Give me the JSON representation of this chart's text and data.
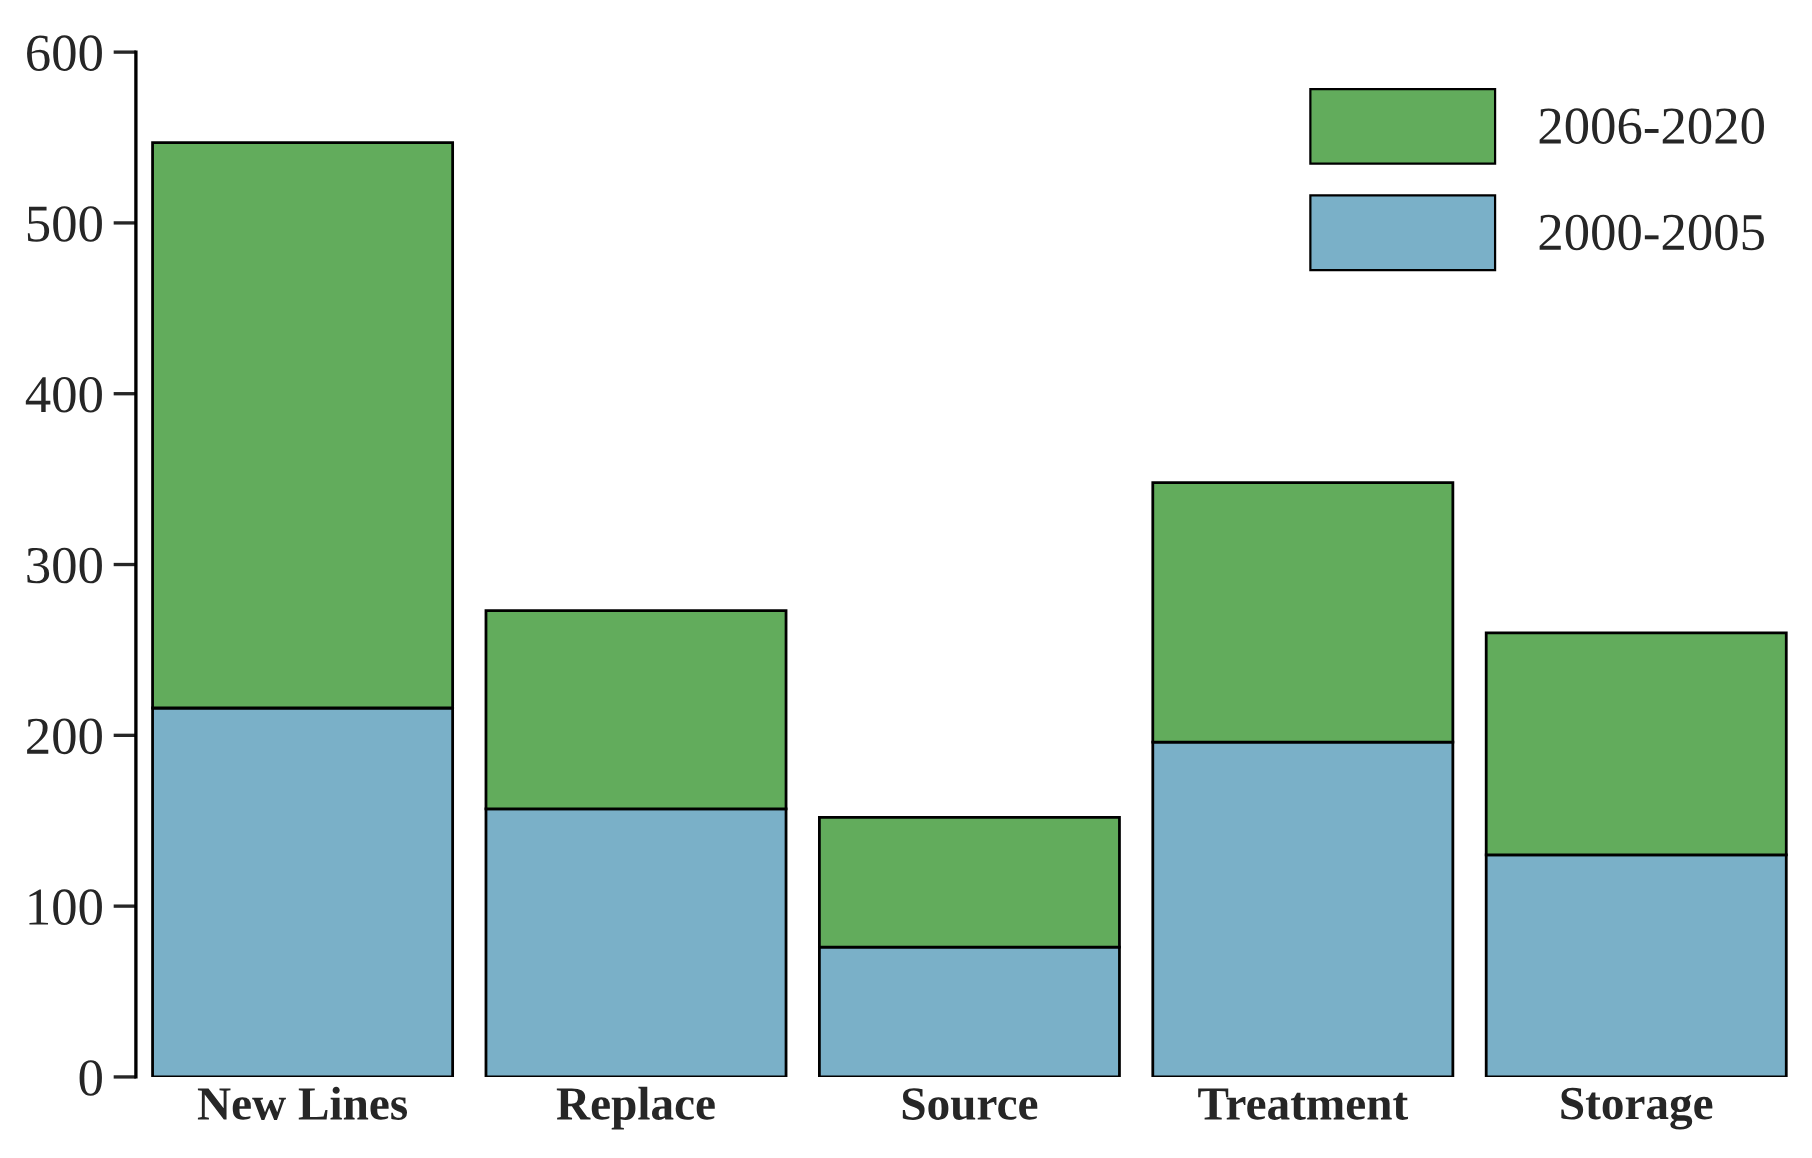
{
  "chart_data": {
    "type": "bar",
    "stacked": true,
    "categories": [
      "New Lines",
      "Replace",
      "Source",
      "Treatment",
      "Storage"
    ],
    "series": [
      {
        "name": "2000-2005",
        "color": "#7ab0c8",
        "values": [
          216,
          157,
          76,
          196,
          130
        ]
      },
      {
        "name": "2006-2020",
        "color": "#62ac5c",
        "values": [
          331,
          116,
          76,
          152,
          130
        ]
      }
    ],
    "ylim": [
      0,
      600
    ],
    "yticks": [
      0,
      100,
      200,
      300,
      400,
      500,
      600
    ],
    "grid": false,
    "legend": "top right"
  }
}
